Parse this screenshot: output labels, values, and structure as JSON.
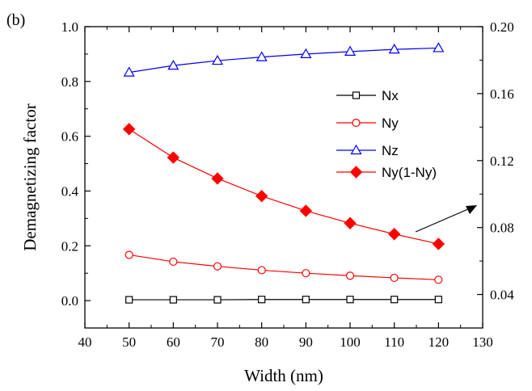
{
  "panel_label": "(b)",
  "chart_data": {
    "type": "line",
    "xlabel": "Width (nm)",
    "ylabel": "Demagnetizing factor",
    "xlim": [
      40,
      130
    ],
    "ylim": [
      -0.1,
      1.0
    ],
    "y2lim": [
      0.02,
      0.2
    ],
    "x_ticks": [
      "40",
      "50",
      "60",
      "70",
      "80",
      "90",
      "100",
      "110",
      "120",
      "130"
    ],
    "y_ticks": [
      "0.0",
      "0.2",
      "0.4",
      "0.6",
      "0.8",
      "1.0"
    ],
    "y2_ticks": [
      "0.04",
      "0.08",
      "0.12",
      "0.16",
      "0.20"
    ],
    "x": [
      50,
      60,
      70,
      80,
      90,
      100,
      110,
      120
    ],
    "legend_position": "right",
    "series": [
      {
        "name": "Nx",
        "axis": "left",
        "marker": "open-square",
        "color": "#000000",
        "values": [
          0.003,
          0.003,
          0.003,
          0.004,
          0.004,
          0.004,
          0.004,
          0.004
        ]
      },
      {
        "name": "Ny",
        "axis": "left",
        "marker": "open-circle",
        "color": "#ff0000",
        "values": [
          0.167,
          0.142,
          0.125,
          0.111,
          0.1,
          0.091,
          0.083,
          0.076
        ]
      },
      {
        "name": "Nz",
        "axis": "left",
        "marker": "open-triangle",
        "color": "#0000ff",
        "values": [
          0.833,
          0.858,
          0.876,
          0.889,
          0.9,
          0.909,
          0.917,
          0.922
        ]
      },
      {
        "name": "Ny(1-Ny)",
        "axis": "right",
        "marker": "filled-diamond",
        "color": "#ff0000",
        "values": [
          0.1388,
          0.1218,
          0.1093,
          0.0988,
          0.09,
          0.0826,
          0.0761,
          0.0702
        ]
      }
    ],
    "annotations": [
      {
        "type": "arrow",
        "points_to": "right axis"
      }
    ]
  }
}
